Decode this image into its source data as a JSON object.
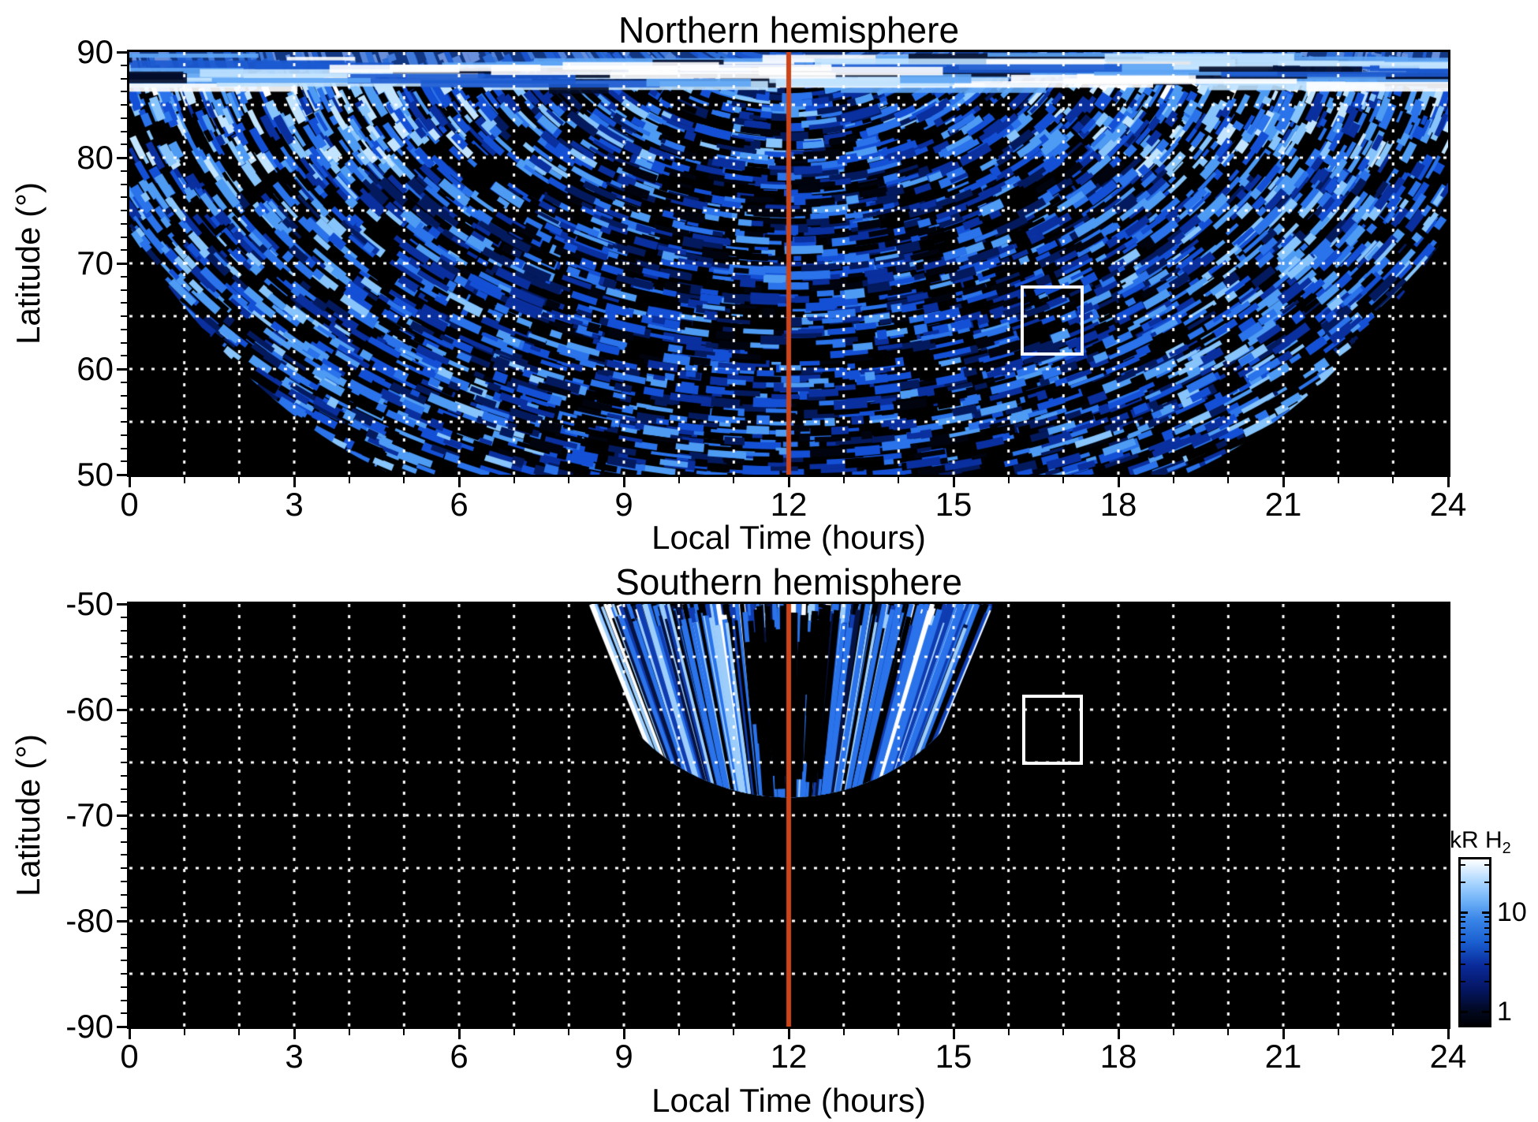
{
  "figure": {
    "background": "#ffffff",
    "description": "Two-panel heatmap figure of H2 auroral emission brightness versus local time and latitude, northern and southern hemispheres, log blue color scale with white dotted grid and a red noon meridian line"
  },
  "chart_data": [
    {
      "type": "heatmap",
      "title": "Northern hemisphere",
      "xlabel": "Local Time (hours)",
      "ylabel": "Latitude (°)",
      "xlim": [
        0,
        24
      ],
      "xticks": [
        0,
        3,
        6,
        9,
        12,
        15,
        18,
        21,
        24
      ],
      "x_minor_step_hours": 1,
      "x_grid_step_hours": 1,
      "ylim": [
        90,
        50
      ],
      "yticks": [
        90,
        80,
        70,
        60,
        50
      ],
      "y_minor_step_deg": 1.25,
      "y_grid_step_deg": 5,
      "grid_style": "white dotted, drawn over data",
      "noon_line": {
        "x": 12,
        "color": "#cc4418"
      },
      "highlight_box": {
        "lt": [
          16.28,
          17.31
        ],
        "lat": [
          61.6,
          67.6
        ],
        "color": "#ffffff"
      },
      "coverage": {
        "corner_lat_at_edge": 73,
        "corner_lt_at_bottom": 4.8,
        "bright_band_lat": [
          87.5,
          90
        ],
        "note": "speckled arc-shaped emission streaks fill lat 50-90 between dawn and dusk cutoff curves; black no-data wedges in lower-left (0-4.8 h below 73-50 deg) and lower-right (19.2-24 h); bright blue-white band along 88-90 deg"
      }
    },
    {
      "type": "heatmap",
      "title": "Southern hemisphere",
      "xlabel": "Local Time (hours)",
      "ylabel": "Latitude (°)",
      "xlim": [
        0,
        24
      ],
      "xticks": [
        0,
        3,
        6,
        9,
        12,
        15,
        18,
        21,
        24
      ],
      "x_minor_step_hours": 1,
      "x_grid_step_hours": 1,
      "ylim": [
        -50,
        -90
      ],
      "yticks": [
        -50,
        -60,
        -70,
        -80,
        -90
      ],
      "y_minor_step_deg": 1.25,
      "y_grid_step_deg": 5,
      "grid_style": "white dotted, drawn over data",
      "noon_line": {
        "x": 12,
        "color": "#cc4418"
      },
      "highlight_box": {
        "lt": [
          16.3,
          17.3
        ],
        "lat": [
          -64.9,
          -58.9
        ],
        "color": "#ffffff"
      },
      "fan": {
        "lt_top": [
          8.3,
          15.7
        ],
        "lat_tip": -68.3,
        "note": "bowl-shaped fan of near-vertical emission streaks centred on noon, widest at -50 deg, rounded tip near -68 deg; rest of panel black (no data)"
      }
    }
  ],
  "colorbar": {
    "title_main": "kR H",
    "title_sub": "2",
    "scale": "log",
    "ticks": [
      10,
      1
    ],
    "tick_labels": [
      "10",
      "1"
    ],
    "minor_ticks": [
      2,
      3,
      4,
      5,
      6,
      7,
      8,
      9,
      20,
      30
    ],
    "range_approx": [
      0.7,
      34
    ],
    "gradient_stops": [
      "#ffffff 0%",
      "#a9d5ff 14%",
      "#6eb1f7 25%",
      "#3a86e8 36%",
      "#1a5fd0 50%",
      "#0a2a9a 64%",
      "#041560 79%",
      "#01081e 92%",
      "#000005 100%"
    ]
  },
  "palette": {
    "heat": [
      "#01040f",
      "#041a5e",
      "#0a2f9e",
      "#1450d6",
      "#2a73ea",
      "#4e9bf4",
      "#86c4fb",
      "#c2e4fe",
      "#ffffff"
    ],
    "grid": "#ffffff",
    "axis": "#000000"
  }
}
